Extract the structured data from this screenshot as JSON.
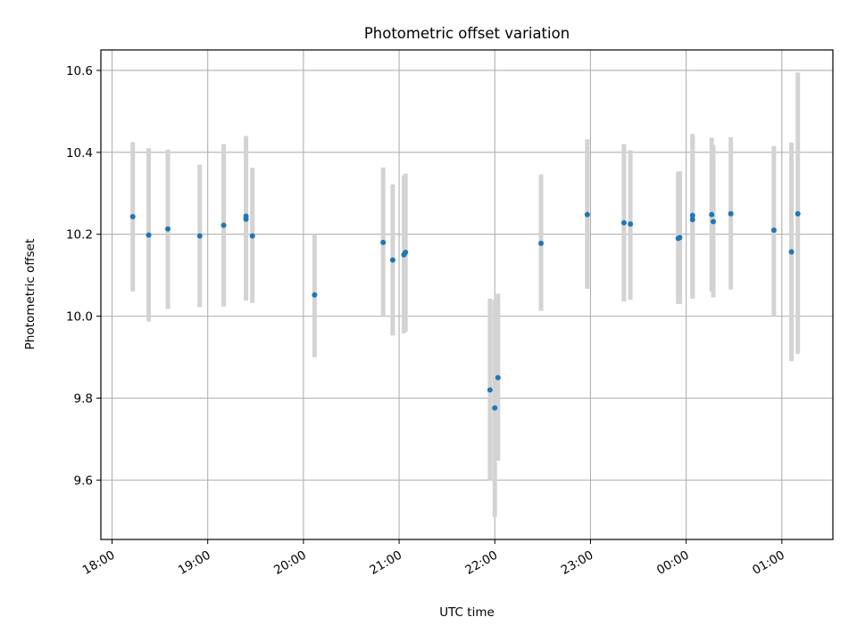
{
  "chart_data": {
    "type": "scatter",
    "title": "Photometric offset variation",
    "xlabel": "UTC time",
    "ylabel": "Photometric offset",
    "x_ticks": [
      "18:00",
      "19:00",
      "20:00",
      "21:00",
      "22:00",
      "23:00",
      "00:00",
      "01:00"
    ],
    "y_ticks": [
      "9.6",
      "9.8",
      "10.0",
      "10.2",
      "10.4",
      "10.6"
    ],
    "y_tick_values": [
      9.6,
      9.8,
      10.0,
      10.2,
      10.4,
      10.6
    ],
    "xlim": [
      "17:53",
      "01:32"
    ],
    "ylim": [
      9.455,
      10.65
    ],
    "grid": true,
    "colors": {
      "point": "#1f77b4",
      "errorbar": "#d3d3d3",
      "grid": "#b0b0b0"
    },
    "points": [
      {
        "x": "18:13",
        "y": 10.243,
        "lo": 10.06,
        "hi": 10.425
      },
      {
        "x": "18:23",
        "y": 10.198,
        "lo": 9.987,
        "hi": 10.41
      },
      {
        "x": "18:35",
        "y": 10.213,
        "lo": 10.018,
        "hi": 10.407
      },
      {
        "x": "18:55",
        "y": 10.196,
        "lo": 10.022,
        "hi": 10.37
      },
      {
        "x": "19:10",
        "y": 10.222,
        "lo": 10.024,
        "hi": 10.42
      },
      {
        "x": "19:24",
        "y": 10.244,
        "lo": 10.038,
        "hi": 10.44
      },
      {
        "x": "19:24",
        "y": 10.237,
        "lo": 10.04,
        "hi": 10.435
      },
      {
        "x": "19:28",
        "y": 10.196,
        "lo": 10.032,
        "hi": 10.362
      },
      {
        "x": "20:07",
        "y": 10.052,
        "lo": 9.9,
        "hi": 10.2
      },
      {
        "x": "20:50",
        "y": 10.18,
        "lo": 10.0,
        "hi": 10.363
      },
      {
        "x": "20:56",
        "y": 10.137,
        "lo": 9.953,
        "hi": 10.322
      },
      {
        "x": "21:03",
        "y": 10.15,
        "lo": 9.958,
        "hi": 10.343
      },
      {
        "x": "21:04",
        "y": 10.156,
        "lo": 9.962,
        "hi": 10.348
      },
      {
        "x": "21:57",
        "y": 9.82,
        "lo": 9.6,
        "hi": 10.043
      },
      {
        "x": "22:00",
        "y": 9.776,
        "lo": 9.51,
        "hi": 10.04
      },
      {
        "x": "22:02",
        "y": 9.85,
        "lo": 9.647,
        "hi": 10.055
      },
      {
        "x": "22:29",
        "y": 10.178,
        "lo": 10.013,
        "hi": 10.346
      },
      {
        "x": "22:58",
        "y": 10.248,
        "lo": 10.067,
        "hi": 10.432
      },
      {
        "x": "23:21",
        "y": 10.228,
        "lo": 10.036,
        "hi": 10.42
      },
      {
        "x": "23:25",
        "y": 10.225,
        "lo": 10.04,
        "hi": 10.405
      },
      {
        "x": "23:55",
        "y": 10.19,
        "lo": 10.03,
        "hi": 10.353
      },
      {
        "x": "23:56",
        "y": 10.192,
        "lo": 10.03,
        "hi": 10.354
      },
      {
        "x": "00:04",
        "y": 10.246,
        "lo": 10.043,
        "hi": 10.445
      },
      {
        "x": "00:04",
        "y": 10.236,
        "lo": 10.044,
        "hi": 10.43
      },
      {
        "x": "00:16",
        "y": 10.248,
        "lo": 10.06,
        "hi": 10.436
      },
      {
        "x": "00:17",
        "y": 10.231,
        "lo": 10.046,
        "hi": 10.418
      },
      {
        "x": "00:28",
        "y": 10.25,
        "lo": 10.065,
        "hi": 10.437
      },
      {
        "x": "00:55",
        "y": 10.21,
        "lo": 10.0,
        "hi": 10.416
      },
      {
        "x": "01:06",
        "y": 10.157,
        "lo": 9.89,
        "hi": 10.424
      },
      {
        "x": "01:10",
        "y": 10.25,
        "lo": 9.908,
        "hi": 10.595
      }
    ]
  }
}
